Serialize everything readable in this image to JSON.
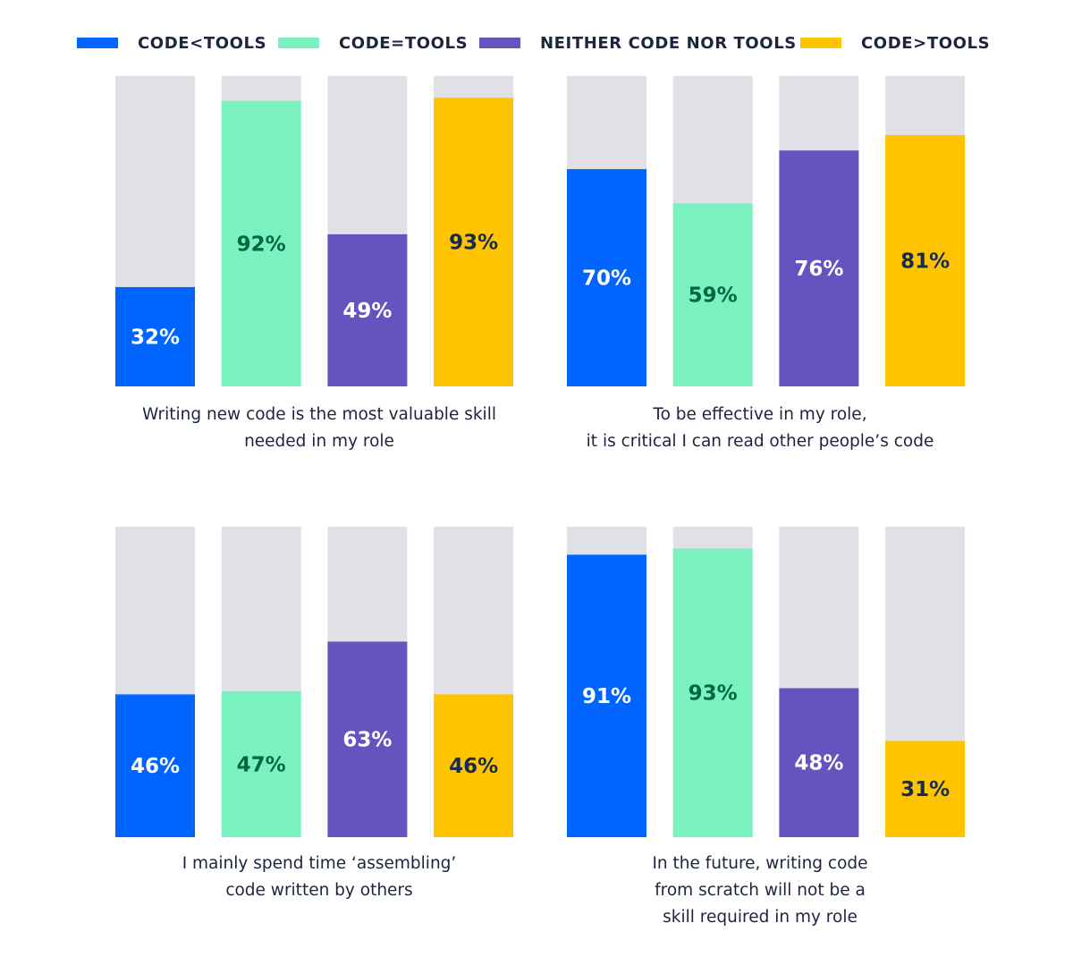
{
  "legend": [
    {
      "label": "CODE<TOOLS",
      "color": "#0065FF"
    },
    {
      "label": "CODE=TOOLS",
      "color": "#79F2C0"
    },
    {
      "label": "NEITHER CODE NOR TOOLS",
      "color": "#6554C0"
    },
    {
      "label": "CODE>TOOLS",
      "color": "#FFC400"
    }
  ],
  "colors": {
    "track": "#DFE1E6",
    "label_on_blue": "#FFFFFF",
    "label_on_green": "#006644",
    "label_on_purple": "#FFFFFF",
    "label_on_yellow": "#172B4D"
  },
  "chart_data": [
    {
      "type": "bar",
      "categories": [
        "CODE<TOOLS",
        "CODE=TOOLS",
        "NEITHER CODE NOR TOOLS",
        "CODE>TOOLS"
      ],
      "values": [
        32,
        92,
        49,
        93
      ],
      "value_labels": [
        "32%",
        "92%",
        "49%",
        "93%"
      ],
      "ylim": [
        0,
        100
      ],
      "caption_lines": [
        "Writing new code is the most valuable skill",
        "needed in my role"
      ]
    },
    {
      "type": "bar",
      "categories": [
        "CODE<TOOLS",
        "CODE=TOOLS",
        "NEITHER CODE NOR TOOLS",
        "CODE>TOOLS"
      ],
      "values": [
        70,
        59,
        76,
        81
      ],
      "value_labels": [
        "70%",
        "59%",
        "76%",
        "81%"
      ],
      "ylim": [
        0,
        100
      ],
      "caption_lines": [
        "To be effective in my role,",
        "it is critical I can read other people’s code"
      ]
    },
    {
      "type": "bar",
      "categories": [
        "CODE<TOOLS",
        "CODE=TOOLS",
        "NEITHER CODE NOR TOOLS",
        "CODE>TOOLS"
      ],
      "values": [
        46,
        47,
        63,
        46
      ],
      "value_labels": [
        "46%",
        "47%",
        "63%",
        "46%"
      ],
      "ylim": [
        0,
        100
      ],
      "caption_lines": [
        "I mainly spend time ‘assembling’",
        "code written by others"
      ]
    },
    {
      "type": "bar",
      "categories": [
        "CODE<TOOLS",
        "CODE=TOOLS",
        "NEITHER CODE NOR TOOLS",
        "CODE>TOOLS"
      ],
      "values": [
        91,
        93,
        48,
        31
      ],
      "value_labels": [
        "91%",
        "93%",
        "48%",
        "31%"
      ],
      "ylim": [
        0,
        100
      ],
      "caption_lines": [
        "In the future, writing code",
        "from scratch will not be a",
        "skill required in my role"
      ]
    }
  ]
}
